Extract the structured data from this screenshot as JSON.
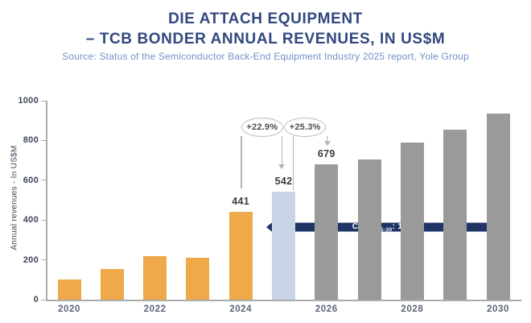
{
  "header": {
    "title_line1": "DIE ATTACH EQUIPMENT",
    "title_line2": "– TCB BONDER ANNUAL REVENUES, IN US$M",
    "source": "Source: Status of the Semiconductor Back-End Equipment Industry 2025 report, Yole Group"
  },
  "chart_data": {
    "type": "bar",
    "title": "DIE ATTACH EQUIPMENT – TCB BONDER ANNUAL REVENUES, IN US$M",
    "ylabel": "Annual revenues - In US$M",
    "xlabel": "",
    "ylim": [
      0,
      1000
    ],
    "yticks": [
      0,
      200,
      400,
      600,
      800,
      1000
    ],
    "categories": [
      "2020",
      "2021",
      "2022",
      "2023",
      "2024",
      "2025",
      "2026",
      "2027",
      "2028",
      "2029",
      "2030"
    ],
    "values": [
      100,
      155,
      220,
      210,
      441,
      542,
      679,
      705,
      790,
      855,
      935
    ],
    "bar_color_groups": [
      "historical",
      "historical",
      "historical",
      "historical",
      "historical",
      "current",
      "forecast",
      "forecast",
      "forecast",
      "forecast",
      "forecast"
    ],
    "value_label_indices": [
      4,
      5,
      6
    ],
    "value_labels": [
      "441",
      "542",
      "679"
    ],
    "x_tick_label_indices": [
      0,
      2,
      4,
      6,
      8,
      10
    ],
    "x_tick_labels": [
      "2020",
      "2022",
      "2024",
      "2026",
      "2028",
      "2030"
    ],
    "grid": false,
    "legend": "none",
    "annotations": [
      {
        "label": "+22.9%",
        "from_index": 4,
        "to_index": 5
      },
      {
        "label": "+25.3%",
        "from_index": 5,
        "to_index": 6
      }
    ],
    "cagr": {
      "prefix": "CAGR",
      "subscript": "25-30",
      "suffix": ": 11.6%",
      "from_index": 5,
      "to_index": 10
    }
  },
  "colors": {
    "historical": "#EFA94A",
    "current": "#C9D4E7",
    "forecast": "#9A9A9A",
    "navy": "#1F3566",
    "title": "#31487E",
    "source": "#7191CB",
    "axis": "#ABABAB"
  }
}
